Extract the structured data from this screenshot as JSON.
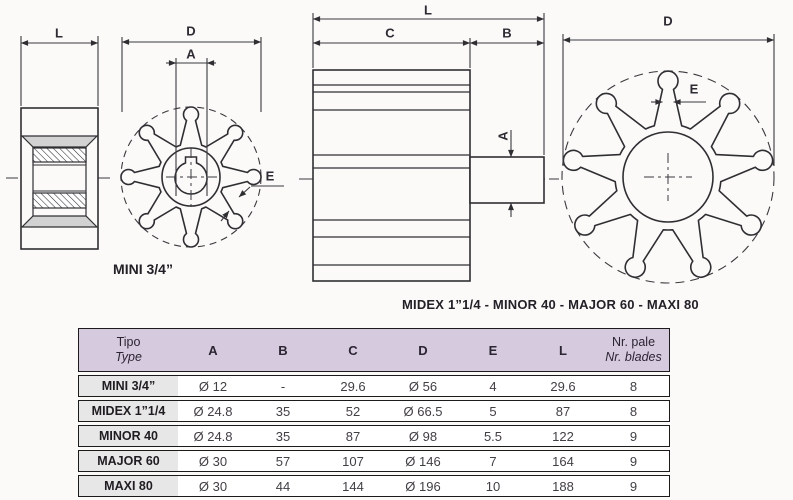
{
  "colors": {
    "line": "#2f2f33",
    "dim_line": "#3a3a3e",
    "gray_fill": "#d2d2d2",
    "header_bg": "#d6cadf",
    "label_col_bg": "#e8e7e7",
    "border": "#1b1b1b",
    "background": "#fbfaf9"
  },
  "drawings": {
    "mini": {
      "label": "MINI 3/4”",
      "side_view": {
        "dim_l": "L"
      },
      "front_view": {
        "dim_d": "D",
        "dim_a": "A",
        "dim_e": "E",
        "blades": 8
      }
    },
    "large": {
      "caption": "MIDEX 1”1/4 - MINOR 40 - MAJOR 60 - MAXI 80",
      "side_view": {
        "dim_l": "L",
        "dim_c": "C",
        "dim_b": "B",
        "dim_a": "A"
      },
      "front_view": {
        "dim_d": "D",
        "dim_e": "E",
        "blades": 9
      }
    }
  },
  "table": {
    "header": {
      "col0_line1": "Tipo",
      "col0_line2": "Type",
      "cols": [
        "A",
        "B",
        "C",
        "D",
        "E",
        "L"
      ],
      "last_line1": "Nr. pale",
      "last_line2": "Nr. blades"
    },
    "rows": [
      {
        "name": "MINI 3/4”",
        "values": [
          "Ø 12",
          "-",
          "29.6",
          "Ø 56",
          "4",
          "29.6",
          "8"
        ]
      },
      {
        "name": "MIDEX 1”1/4",
        "values": [
          "Ø 24.8",
          "35",
          "52",
          "Ø 66.5",
          "5",
          "87",
          "8"
        ]
      },
      {
        "name": "MINOR 40",
        "values": [
          "Ø 24.8",
          "35",
          "87",
          "Ø 98",
          "5.5",
          "122",
          "9"
        ]
      },
      {
        "name": "MAJOR 60",
        "values": [
          "Ø 30",
          "57",
          "107",
          "Ø 146",
          "7",
          "164",
          "9"
        ]
      },
      {
        "name": "MAXI 80",
        "values": [
          "Ø 30",
          "44",
          "144",
          "Ø 196",
          "10",
          "188",
          "9"
        ]
      }
    ]
  }
}
